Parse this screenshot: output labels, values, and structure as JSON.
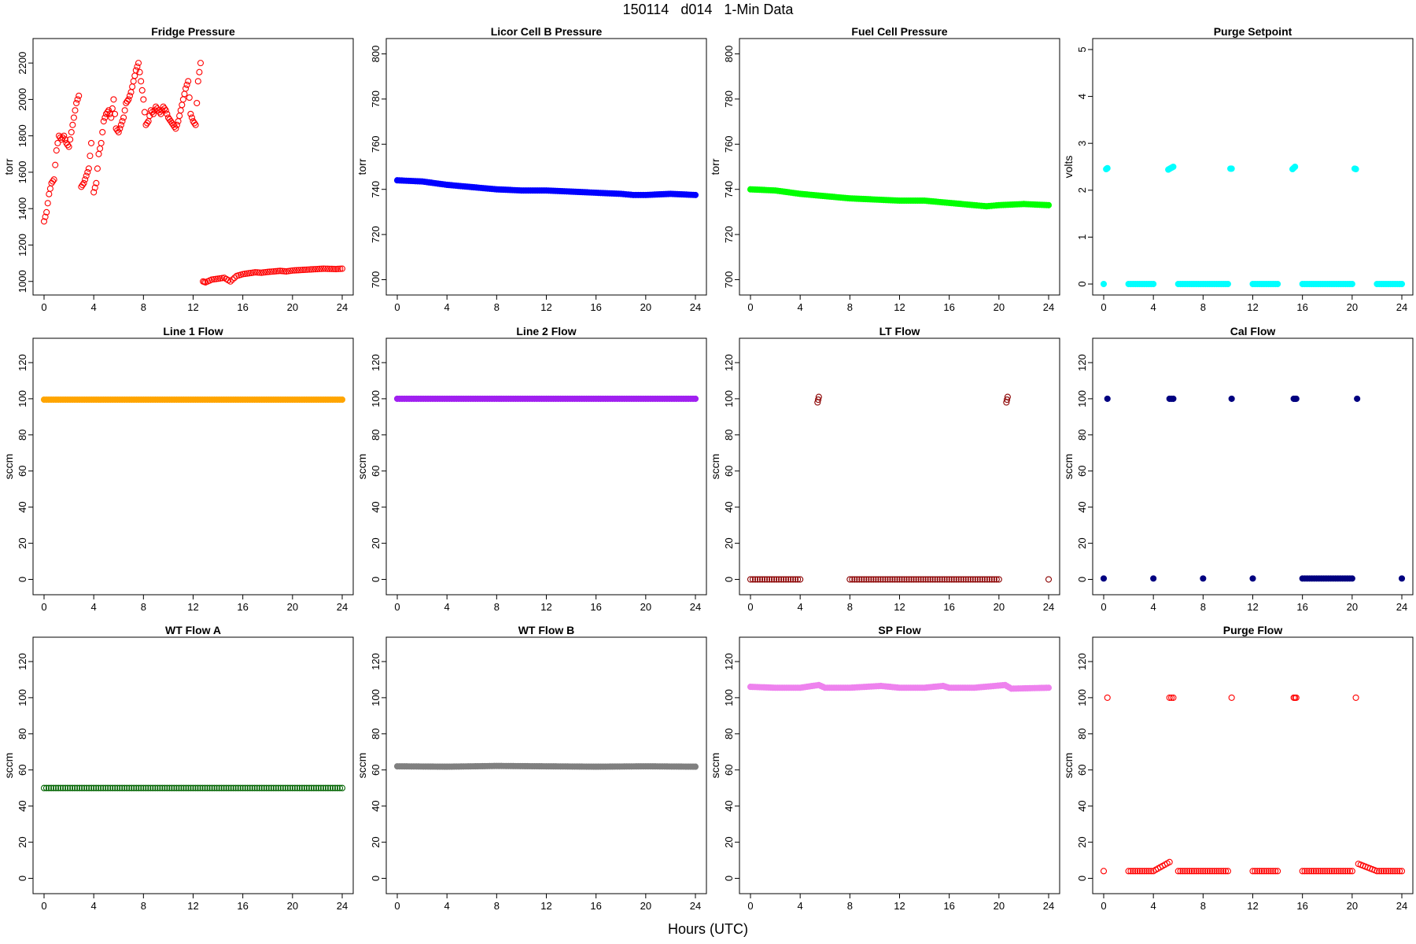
{
  "page": {
    "title": "150114   d014   1-Min Data",
    "xlabel": "Hours (UTC)"
  },
  "chart_data": [
    {
      "type": "scatter",
      "title": "Fridge Pressure",
      "ylabel": "torr",
      "color": "#ff0000",
      "filled": false,
      "xlim": [
        0,
        24
      ],
      "ylim": [
        960,
        2300
      ],
      "xticks": [
        0,
        4,
        8,
        12,
        16,
        20,
        24
      ],
      "yticks": [
        1000,
        1200,
        1400,
        1600,
        1800,
        2000,
        2200
      ],
      "x": [
        0.0,
        0.2,
        0.4,
        0.6,
        0.8,
        1.0,
        1.2,
        1.4,
        1.6,
        1.8,
        2.0,
        2.2,
        2.4,
        2.6,
        2.8,
        3.0,
        3.2,
        3.4,
        3.6,
        3.8,
        4.0,
        4.2,
        4.4,
        4.6,
        4.8,
        5.0,
        5.2,
        5.4,
        5.6,
        5.8,
        6.0,
        6.2,
        6.4,
        6.6,
        6.8,
        7.0,
        7.2,
        7.4,
        7.6,
        7.8,
        8.0,
        8.2,
        8.4,
        8.6,
        8.8,
        9.0,
        9.2,
        9.4,
        9.6,
        9.8,
        10.0,
        10.2,
        10.4,
        10.6,
        10.8,
        11.0,
        11.2,
        11.4,
        11.6,
        11.8,
        12.0,
        12.2,
        12.4,
        12.6,
        12.8,
        13.0,
        13.5,
        14.0,
        14.5,
        15.0,
        15.5,
        16.0,
        16.5,
        17.0,
        17.5,
        18.0,
        18.5,
        19.0,
        19.5,
        20.0,
        20.5,
        21.0,
        21.5,
        22.0,
        22.5,
        23.0,
        23.5,
        24.0
      ],
      "y": [
        1330,
        1380,
        1480,
        1540,
        1560,
        1720,
        1800,
        1780,
        1800,
        1760,
        1740,
        1820,
        1900,
        1980,
        2020,
        1520,
        1540,
        1580,
        1620,
        1760,
        1490,
        1540,
        1700,
        1760,
        1880,
        1920,
        1940,
        1900,
        2000,
        1840,
        1820,
        1860,
        1900,
        1980,
        2000,
        2040,
        2100,
        2160,
        2200,
        2100,
        2000,
        1860,
        1880,
        1940,
        1920,
        1960,
        1940,
        1920,
        1960,
        1940,
        1900,
        1880,
        1860,
        1840,
        1880,
        1940,
        2000,
        2060,
        2100,
        1920,
        1880,
        1860,
        2100,
        2200,
        1000,
        995,
        1010,
        1015,
        1020,
        1000,
        1030,
        1040,
        1045,
        1050,
        1048,
        1052,
        1055,
        1058,
        1055,
        1060,
        1062,
        1064,
        1066,
        1068,
        1070,
        1069,
        1068,
        1070
      ]
    },
    {
      "type": "scatter",
      "title": "Licor Cell B Pressure",
      "ylabel": "torr",
      "color": "#0000ff",
      "filled": true,
      "xlim": [
        0,
        24
      ],
      "ylim": [
        696,
        804
      ],
      "xticks": [
        0,
        4,
        8,
        12,
        16,
        20,
        24
      ],
      "yticks": [
        700,
        720,
        740,
        760,
        780,
        800
      ],
      "x": [
        0,
        2,
        4,
        6,
        8,
        10,
        12,
        14,
        16,
        18,
        19,
        20,
        22,
        24
      ],
      "y": [
        744,
        743.5,
        742,
        741,
        740,
        739.5,
        739.5,
        739,
        738.5,
        738,
        737.5,
        737.5,
        738,
        737.5
      ]
    },
    {
      "type": "scatter",
      "title": "Fuel Cell Pressure",
      "ylabel": "torr",
      "color": "#00ff00",
      "filled": true,
      "xlim": [
        0,
        24
      ],
      "ylim": [
        696,
        804
      ],
      "xticks": [
        0,
        4,
        8,
        12,
        16,
        20,
        24
      ],
      "yticks": [
        700,
        720,
        740,
        760,
        780,
        800
      ],
      "x": [
        0,
        2,
        4,
        6,
        8,
        10,
        12,
        14,
        16,
        18,
        19,
        20,
        22,
        24
      ],
      "y": [
        740,
        739.5,
        738,
        737,
        736,
        735.5,
        735,
        735,
        734,
        733,
        732.5,
        733,
        733.5,
        733
      ]
    },
    {
      "type": "scatter",
      "title": "Purge Setpoint",
      "ylabel": "volts",
      "color": "#00ffff",
      "filled": true,
      "xlim": [
        0,
        24
      ],
      "ylim": [
        -0.1,
        5.1
      ],
      "xticks": [
        0,
        4,
        8,
        12,
        16,
        20,
        24
      ],
      "yticks": [
        0,
        1,
        2,
        3,
        4,
        5
      ],
      "x": [
        0,
        2,
        4,
        6,
        8,
        10,
        12,
        14,
        16,
        18,
        20,
        22,
        24,
        0.2,
        0.3,
        5.2,
        5.4,
        5.6,
        10.2,
        10.3,
        15.2,
        15.4,
        20.2,
        20.3
      ],
      "y": [
        0,
        0,
        0,
        0,
        0,
        0,
        0,
        0,
        0,
        0,
        0,
        0,
        0,
        2.45,
        2.47,
        2.44,
        2.47,
        2.5,
        2.46,
        2.46,
        2.45,
        2.5,
        2.46,
        2.45
      ]
    },
    {
      "type": "scatter",
      "title": "Line 1 Flow",
      "ylabel": "sccm",
      "color": "#ffa500",
      "filled": true,
      "xlim": [
        0,
        24
      ],
      "ylim": [
        -5,
        130
      ],
      "xticks": [
        0,
        4,
        8,
        12,
        16,
        20,
        24
      ],
      "yticks": [
        0,
        20,
        40,
        60,
        80,
        100,
        120
      ],
      "x": [
        0,
        4,
        8,
        12,
        16,
        20,
        24
      ],
      "y": [
        99.5,
        99.5,
        99.5,
        99.5,
        99.5,
        99.5,
        99.5
      ]
    },
    {
      "type": "scatter",
      "title": "Line 2 Flow",
      "ylabel": "sccm",
      "color": "#a020f0",
      "filled": true,
      "xlim": [
        0,
        24
      ],
      "ylim": [
        -5,
        130
      ],
      "xticks": [
        0,
        4,
        8,
        12,
        16,
        20,
        24
      ],
      "yticks": [
        0,
        20,
        40,
        60,
        80,
        100,
        120
      ],
      "x": [
        0,
        4,
        8,
        12,
        16,
        20,
        24
      ],
      "y": [
        100,
        100,
        100,
        100,
        100,
        100,
        100
      ]
    },
    {
      "type": "scatter",
      "title": "LT Flow",
      "ylabel": "sccm",
      "color": "#8b0000",
      "filled": false,
      "xlim": [
        0,
        24
      ],
      "ylim": [
        -5,
        130
      ],
      "xticks": [
        0,
        4,
        8,
        12,
        16,
        20,
        24
      ],
      "yticks": [
        0,
        20,
        40,
        60,
        80,
        100,
        120
      ],
      "x": [
        0,
        4,
        8,
        12,
        16,
        20,
        24,
        5.4,
        5.5,
        20.6,
        20.7
      ],
      "y": [
        0,
        0,
        0,
        0,
        0,
        0,
        0,
        98,
        101,
        98,
        101
      ]
    },
    {
      "type": "scatter",
      "title": "Cal Flow",
      "ylabel": "sccm",
      "color": "#000080",
      "filled": true,
      "xlim": [
        0,
        24
      ],
      "ylim": [
        -5,
        130
      ],
      "xticks": [
        0,
        4,
        8,
        12,
        16,
        20,
        24
      ],
      "yticks": [
        0,
        20,
        40,
        60,
        80,
        100,
        120
      ],
      "x": [
        0,
        4,
        8,
        12,
        16,
        20,
        24,
        0.3,
        5.3,
        5.6,
        10.3,
        15.3,
        15.5,
        20.4
      ],
      "y": [
        0.5,
        0.5,
        0.5,
        0.5,
        0.5,
        0.5,
        0.5,
        100,
        100,
        100,
        100,
        100,
        100,
        100
      ]
    },
    {
      "type": "scatter",
      "title": "WT Flow A",
      "ylabel": "sccm",
      "color": "#006400",
      "filled": false,
      "xlim": [
        0,
        24
      ],
      "ylim": [
        -5,
        130
      ],
      "xticks": [
        0,
        4,
        8,
        12,
        16,
        20,
        24
      ],
      "yticks": [
        0,
        20,
        40,
        60,
        80,
        100,
        120
      ],
      "x": [
        0,
        4,
        8,
        12,
        16,
        20,
        24
      ],
      "y": [
        50,
        50,
        50,
        50,
        50,
        50,
        50
      ]
    },
    {
      "type": "scatter",
      "title": "WT Flow B",
      "ylabel": "sccm",
      "color": "#808080",
      "filled": true,
      "xlim": [
        0,
        24
      ],
      "ylim": [
        -5,
        130
      ],
      "xticks": [
        0,
        4,
        8,
        12,
        16,
        20,
        24
      ],
      "yticks": [
        0,
        20,
        40,
        60,
        80,
        100,
        120
      ],
      "x": [
        0,
        4,
        8,
        12,
        16,
        20,
        24
      ],
      "y": [
        62,
        61.8,
        62.2,
        62,
        61.8,
        62,
        61.8
      ]
    },
    {
      "type": "scatter",
      "title": "SP Flow",
      "ylabel": "sccm",
      "color": "#ee82ee",
      "filled": true,
      "xlim": [
        0,
        24
      ],
      "ylim": [
        -5,
        130
      ],
      "xticks": [
        0,
        4,
        8,
        12,
        16,
        20,
        24
      ],
      "yticks": [
        0,
        20,
        40,
        60,
        80,
        100,
        120
      ],
      "x": [
        0,
        2,
        4,
        5.5,
        6,
        8,
        10.5,
        12,
        14,
        15.5,
        16,
        18,
        20.5,
        21,
        24
      ],
      "y": [
        106,
        105.5,
        105.5,
        107,
        105.5,
        105.5,
        106.5,
        105.5,
        105.5,
        106.5,
        105.5,
        105.5,
        107,
        105,
        105.5
      ]
    },
    {
      "type": "scatter",
      "title": "Purge Flow",
      "ylabel": "sccm",
      "color": "#ff0000",
      "filled": false,
      "xlim": [
        0,
        24
      ],
      "ylim": [
        -5,
        130
      ],
      "xticks": [
        0,
        4,
        8,
        12,
        16,
        20,
        24
      ],
      "yticks": [
        0,
        20,
        40,
        60,
        80,
        100,
        120
      ],
      "x": [
        0,
        2,
        4,
        5.3,
        6,
        8,
        10,
        12,
        14,
        16,
        18,
        20,
        20.5,
        22,
        24,
        0.3,
        5.3,
        5.6,
        10.3,
        15.3,
        15.5,
        20.3
      ],
      "y": [
        4,
        4,
        4,
        9,
        4,
        4,
        4,
        4,
        4,
        4,
        4,
        4,
        8,
        4,
        4,
        100,
        100,
        100,
        100,
        100,
        100,
        100
      ]
    }
  ]
}
